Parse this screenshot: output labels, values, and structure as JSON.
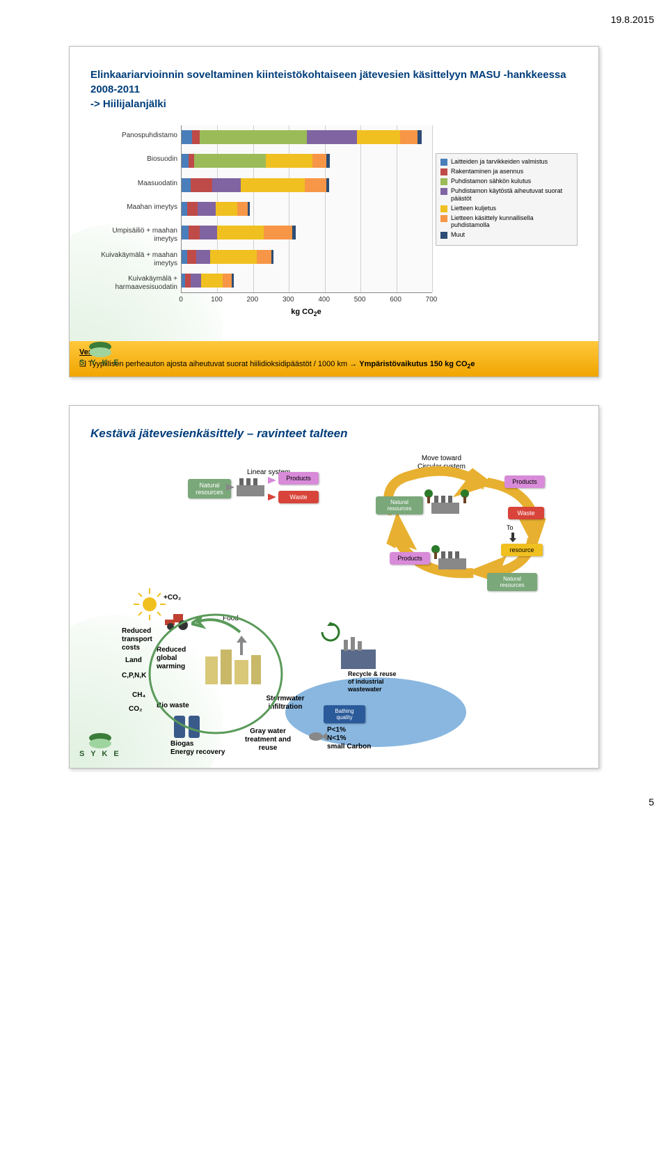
{
  "page": {
    "date": "19.8.2015",
    "number": "5"
  },
  "logo": {
    "text": "S Y K E"
  },
  "slide1": {
    "title": "Elinkaariarvioinnin soveltaminen kiinteistökohtaiseen jätevesien käsittelyyn MASU -hankkeessa 2008-2011\n-> Hiilijalanjälki",
    "chart": {
      "type": "horizontal-stacked-bar",
      "xlim": [
        0,
        700
      ],
      "xtick_step": 100,
      "x_axis_title": "kg CO₂e",
      "background": "#fafafa",
      "grid_color": "#d0d0d0",
      "categories": [
        "Panospuhdistamo",
        "Biosuodin",
        "Maasuodatin",
        "Maahan imeytys",
        "Umpisäiliö + maahan imeytys",
        "Kuivakäymälä + maahan imeytys",
        "Kuivakäymälä + harmaavesisuodatin"
      ],
      "series_colors": {
        "laitteet": "#4a7ebb",
        "rakentaminen": "#be4b48",
        "sahko": "#9bbb59",
        "suorat": "#8064a2",
        "lietteen_kuljetus": "#f0c020",
        "lietteen_kasittely": "#f79646",
        "muut": "#2c4d75"
      },
      "data": [
        {
          "laitteet": 30,
          "rakentaminen": 20,
          "sahko": 300,
          "suorat": 140,
          "lietteen_kuljetus": 120,
          "lietteen_kasittely": 50,
          "muut": 10
        },
        {
          "laitteet": 20,
          "rakentaminen": 15,
          "sahko": 200,
          "suorat": 0,
          "lietteen_kuljetus": 130,
          "lietteen_kasittely": 40,
          "muut": 10
        },
        {
          "laitteet": 25,
          "rakentaminen": 60,
          "sahko": 0,
          "suorat": 80,
          "lietteen_kuljetus": 180,
          "lietteen_kasittely": 60,
          "muut": 8
        },
        {
          "laitteet": 15,
          "rakentaminen": 30,
          "sahko": 0,
          "suorat": 50,
          "lietteen_kuljetus": 60,
          "lietteen_kasittely": 30,
          "muut": 5
        },
        {
          "laitteet": 20,
          "rakentaminen": 30,
          "sahko": 0,
          "suorat": 50,
          "lietteen_kuljetus": 130,
          "lietteen_kasittely": 80,
          "muut": 8
        },
        {
          "laitteet": 15,
          "rakentaminen": 25,
          "sahko": 0,
          "suorat": 40,
          "lietteen_kuljetus": 130,
          "lietteen_kasittely": 40,
          "muut": 6
        },
        {
          "laitteet": 10,
          "rakentaminen": 15,
          "sahko": 0,
          "suorat": 30,
          "lietteen_kuljetus": 60,
          "lietteen_kasittely": 25,
          "muut": 5
        }
      ],
      "legend": [
        {
          "key": "laitteet",
          "label": "Laitteiden ja tarvikkeiden valmistus"
        },
        {
          "key": "rakentaminen",
          "label": "Rakentaminen ja asennus"
        },
        {
          "key": "sahko",
          "label": "Puhdistamon sähkön kulutus"
        },
        {
          "key": "suorat",
          "label": "Puhdistamon käytöstä aiheutuvat suorat päästöt"
        },
        {
          "key": "lietteen_kuljetus",
          "label": "Lietteen kuljetus"
        },
        {
          "key": "lietteen_kasittely",
          "label": "Lietteen käsittely kunnallisella puhdistamolla"
        },
        {
          "key": "muut",
          "label": "Muut"
        }
      ]
    },
    "compare": {
      "title": "Vertaa",
      "line": "Tyypillisen perheauton ajosta aiheutuvat suorat hiilidioksidipäästöt / 1000 km → Ympäristövaikutus 150 kg CO₂e"
    }
  },
  "slide2": {
    "title": "Kestävä jätevesienkäsittely – ravinteet talteen",
    "diagram": {
      "linear_title": "Linear system",
      "circular_title": "Move toward Circular system",
      "boxes": {
        "natural_resources": {
          "text": "Natural resources",
          "color": "#7aa87a"
        },
        "products1": {
          "text": "Products",
          "color": "#d88bd8"
        },
        "waste1": {
          "text": "Waste",
          "color": "#d8443a"
        },
        "natural_resources2": {
          "text": "Natural resources",
          "color": "#7aa87a"
        },
        "products2": {
          "text": "Products",
          "color": "#d88bd8"
        },
        "waste2": {
          "text": "Waste",
          "color": "#d8443a"
        },
        "products3": {
          "text": "Products",
          "color": "#d88bd8"
        },
        "resource": {
          "text": "resource",
          "color": "#f0c020"
        },
        "to": {
          "text": "To",
          "color": "none"
        },
        "natural_resources3": {
          "text": "Natural resources",
          "color": "#7aa87a"
        }
      },
      "cycle_labels": {
        "co2": "+CO₂",
        "reduced_transport": "Reduced transport costs",
        "land": "Land",
        "reduced_warming": "Reduced global warming",
        "cpnk": "C,P,N,K",
        "ch4": "CH₄",
        "co2_small": "CO₂",
        "bio_waste": "Bio waste",
        "biogas": "Biogas\nEnergy recovery",
        "food": "Food",
        "stormwater": "Stormwater infiltration",
        "gray_water": "Gray water treatment and reuse",
        "recycle_reuse": "Recycle & reuse of industrial wastewater",
        "bathing": "Bathing quality",
        "pn_carbon": "P<1%\nN<1%\nsmall Carbon"
      },
      "colors": {
        "water": "#6ba5d8",
        "cycle_text": "#000000",
        "sun": "#f0c020",
        "tractor": "#c04030",
        "arrow_yellow": "#e8b030",
        "arrow_green": "#5a9a5a",
        "arrow_gray": "#888888"
      }
    }
  }
}
